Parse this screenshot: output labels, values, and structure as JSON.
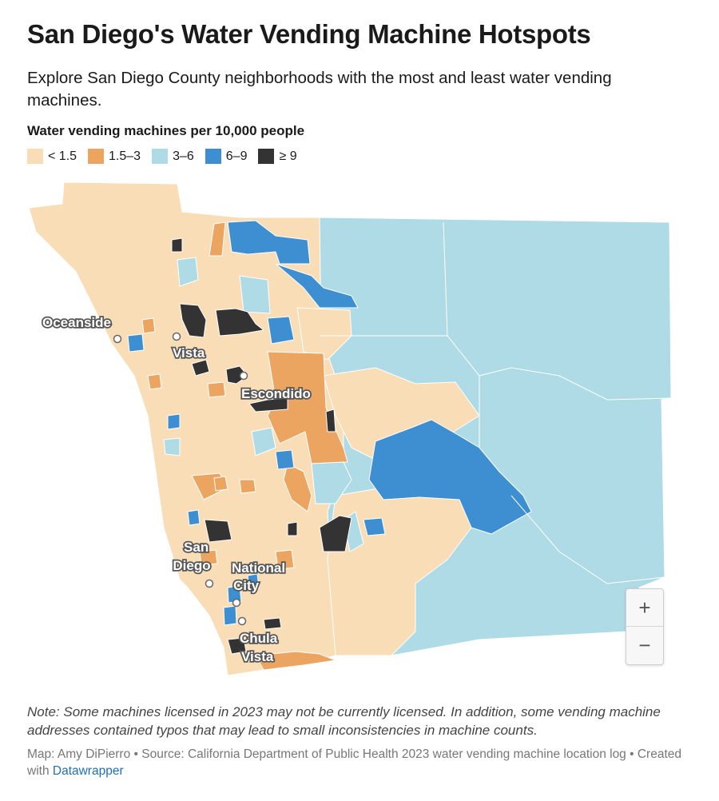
{
  "title": "San Diego's Water Vending Machine Hotspots",
  "description": "Explore San Diego County neighborhoods with the most and least water vending machines.",
  "legend": {
    "title": "Water vending machines per 10,000 people",
    "items": [
      {
        "label": "< 1.5",
        "color": "#f8ddb6"
      },
      {
        "label": "1.5–3",
        "color": "#eca561"
      },
      {
        "label": "3–6",
        "color": "#aedbe6"
      },
      {
        "label": "6–9",
        "color": "#3d8fd1"
      },
      {
        "label": "≥ 9",
        "color": "#333333"
      }
    ]
  },
  "cities": [
    {
      "name": "oceanside",
      "lines": [
        "Oceanside"
      ]
    },
    {
      "name": "vista",
      "lines": [
        "Vista"
      ]
    },
    {
      "name": "escondido",
      "lines": [
        "Escondido"
      ]
    },
    {
      "name": "san-diego",
      "lines": [
        "San",
        "Diego"
      ]
    },
    {
      "name": "national-city",
      "lines": [
        "National",
        "City"
      ]
    },
    {
      "name": "chula-vista",
      "lines": [
        "Chula",
        "Vista"
      ]
    }
  ],
  "zoom": {
    "in_label": "+",
    "out_label": "−"
  },
  "note": "Note: Some machines licensed in 2023 may not be currently licensed. In addition, some vending machine addresses contained typos that may lead to small inconsistencies in machine counts.",
  "credit": {
    "text": "Map: Amy DiPierro • Source: California Department of Public Health 2023 water vending machine location log • Created with ",
    "link": "Datawrapper"
  }
}
